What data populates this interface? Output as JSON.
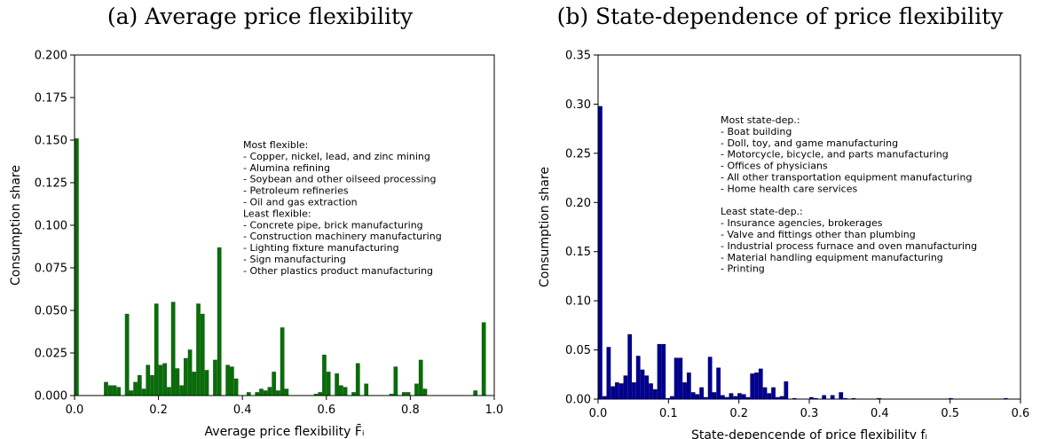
{
  "chart_data": [
    {
      "type": "bar",
      "title": "(a) Average price flexibility",
      "xlabel": "Average price flexibility F̄ᵢ",
      "ylabel": "Consumption share",
      "xlim": [
        0.0,
        1.0
      ],
      "ylim": [
        0.0,
        0.2
      ],
      "xticks": [
        "0.0",
        "0.2",
        "0.4",
        "0.6",
        "0.8",
        "1.0"
      ],
      "yticks": [
        "0.000",
        "0.025",
        "0.050",
        "0.075",
        "0.100",
        "0.125",
        "0.150",
        "0.175",
        "0.200"
      ],
      "bin_width": 0.01,
      "color": "#0b6b0b",
      "grid": false,
      "bins": [
        [
          0.0,
          0.151
        ],
        [
          0.07,
          0.008
        ],
        [
          0.08,
          0.006
        ],
        [
          0.09,
          0.006
        ],
        [
          0.1,
          0.005
        ],
        [
          0.12,
          0.048
        ],
        [
          0.13,
          0.003
        ],
        [
          0.14,
          0.008
        ],
        [
          0.15,
          0.012
        ],
        [
          0.16,
          0.004
        ],
        [
          0.17,
          0.018
        ],
        [
          0.18,
          0.012
        ],
        [
          0.19,
          0.054
        ],
        [
          0.2,
          0.018
        ],
        [
          0.21,
          0.019
        ],
        [
          0.22,
          0.005
        ],
        [
          0.23,
          0.055
        ],
        [
          0.24,
          0.016
        ],
        [
          0.25,
          0.006
        ],
        [
          0.26,
          0.022
        ],
        [
          0.27,
          0.027
        ],
        [
          0.28,
          0.014
        ],
        [
          0.29,
          0.054
        ],
        [
          0.3,
          0.048
        ],
        [
          0.31,
          0.015
        ],
        [
          0.33,
          0.021
        ],
        [
          0.34,
          0.087
        ],
        [
          0.36,
          0.018
        ],
        [
          0.37,
          0.017
        ],
        [
          0.38,
          0.01
        ],
        [
          0.41,
          0.002
        ],
        [
          0.43,
          0.002
        ],
        [
          0.44,
          0.004
        ],
        [
          0.45,
          0.003
        ],
        [
          0.46,
          0.005
        ],
        [
          0.47,
          0.014
        ],
        [
          0.48,
          0.003
        ],
        [
          0.49,
          0.04
        ],
        [
          0.5,
          0.004
        ],
        [
          0.57,
          0.001
        ],
        [
          0.58,
          0.002
        ],
        [
          0.59,
          0.024
        ],
        [
          0.6,
          0.014
        ],
        [
          0.62,
          0.013
        ],
        [
          0.63,
          0.006
        ],
        [
          0.64,
          0.005
        ],
        [
          0.66,
          0.002
        ],
        [
          0.67,
          0.019
        ],
        [
          0.69,
          0.007
        ],
        [
          0.75,
          0.001
        ],
        [
          0.76,
          0.017
        ],
        [
          0.78,
          0.002
        ],
        [
          0.79,
          0.002
        ],
        [
          0.81,
          0.007
        ],
        [
          0.82,
          0.021
        ],
        [
          0.83,
          0.004
        ],
        [
          0.95,
          0.003
        ],
        [
          0.97,
          0.043
        ]
      ],
      "annotation": [
        "Most flexible:",
        "- Copper, nickel, lead, and zinc mining",
        "- Alumina refining",
        "- Soybean and other oilseed processing",
        "- Petroleum refineries",
        "- Oil and gas extraction",
        "Least flexible:",
        "- Concrete pipe, brick manufacturing",
        "- Construction machinery manufacturing",
        "- Lighting fixture manufacturing",
        "- Sign manufacturing",
        "- Other plastics product manufacturing"
      ]
    },
    {
      "type": "bar",
      "title": "(b) State-dependence of price flexibility",
      "xlabel": "State-depencende of price flexibility fᵢ",
      "ylabel": "Consumption share",
      "xlim": [
        0.0,
        0.6
      ],
      "ylim": [
        0.0,
        0.35
      ],
      "xticks": [
        "0.0",
        "0.1",
        "0.2",
        "0.3",
        "0.4",
        "0.5",
        "0.6"
      ],
      "yticks": [
        "0.00",
        "0.05",
        "0.10",
        "0.15",
        "0.20",
        "0.25",
        "0.30",
        "0.35"
      ],
      "bin_width": 0.006,
      "color": "#00008b",
      "grid": false,
      "bins": [
        [
          0.0,
          0.298
        ],
        [
          0.006,
          0.003
        ],
        [
          0.012,
          0.053
        ],
        [
          0.018,
          0.013
        ],
        [
          0.024,
          0.017
        ],
        [
          0.03,
          0.016
        ],
        [
          0.036,
          0.024
        ],
        [
          0.042,
          0.066
        ],
        [
          0.048,
          0.017
        ],
        [
          0.054,
          0.044
        ],
        [
          0.06,
          0.03
        ],
        [
          0.066,
          0.024
        ],
        [
          0.072,
          0.016
        ],
        [
          0.078,
          0.01
        ],
        [
          0.084,
          0.056
        ],
        [
          0.09,
          0.056
        ],
        [
          0.096,
          0.001
        ],
        [
          0.102,
          0.003
        ],
        [
          0.108,
          0.042
        ],
        [
          0.114,
          0.042
        ],
        [
          0.12,
          0.017
        ],
        [
          0.126,
          0.027
        ],
        [
          0.132,
          0.007
        ],
        [
          0.138,
          0.005
        ],
        [
          0.144,
          0.012
        ],
        [
          0.15,
          0.002
        ],
        [
          0.156,
          0.043
        ],
        [
          0.162,
          0.007
        ],
        [
          0.168,
          0.032
        ],
        [
          0.174,
          0.004
        ],
        [
          0.18,
          0.002
        ],
        [
          0.186,
          0.006
        ],
        [
          0.192,
          0.003
        ],
        [
          0.198,
          0.006
        ],
        [
          0.204,
          0.005
        ],
        [
          0.21,
          0.002
        ],
        [
          0.216,
          0.026
        ],
        [
          0.222,
          0.027
        ],
        [
          0.228,
          0.031
        ],
        [
          0.234,
          0.012
        ],
        [
          0.24,
          0.006
        ],
        [
          0.246,
          0.012
        ],
        [
          0.252,
          0.002
        ],
        [
          0.258,
          0.003
        ],
        [
          0.264,
          0.018
        ],
        [
          0.276,
          0.001
        ],
        [
          0.3,
          0.002
        ],
        [
          0.306,
          0.001
        ],
        [
          0.318,
          0.004
        ],
        [
          0.33,
          0.004
        ],
        [
          0.342,
          0.007
        ],
        [
          0.348,
          0.001
        ],
        [
          0.36,
          0.001
        ],
        [
          0.396,
          0.001
        ],
        [
          0.498,
          0.001
        ],
        [
          0.576,
          0.001
        ]
      ],
      "annotation": [
        "Most state-dep.:",
        "- Boat building",
        "- Doll, toy, and game manufacturing",
        "- Motorcycle, bicycle, and parts manufacturing",
        "- Offices of physicians",
        "- All other transportation equipment manufacturing",
        "- Home health care services",
        "",
        "Least state-dep.:",
        "- Insurance agencies, brokerages",
        "- Valve and fittings other than plumbing",
        "- Industrial process furnace and oven manufacturing",
        "- Material handling equipment manufacturing",
        "- Printing"
      ]
    }
  ]
}
